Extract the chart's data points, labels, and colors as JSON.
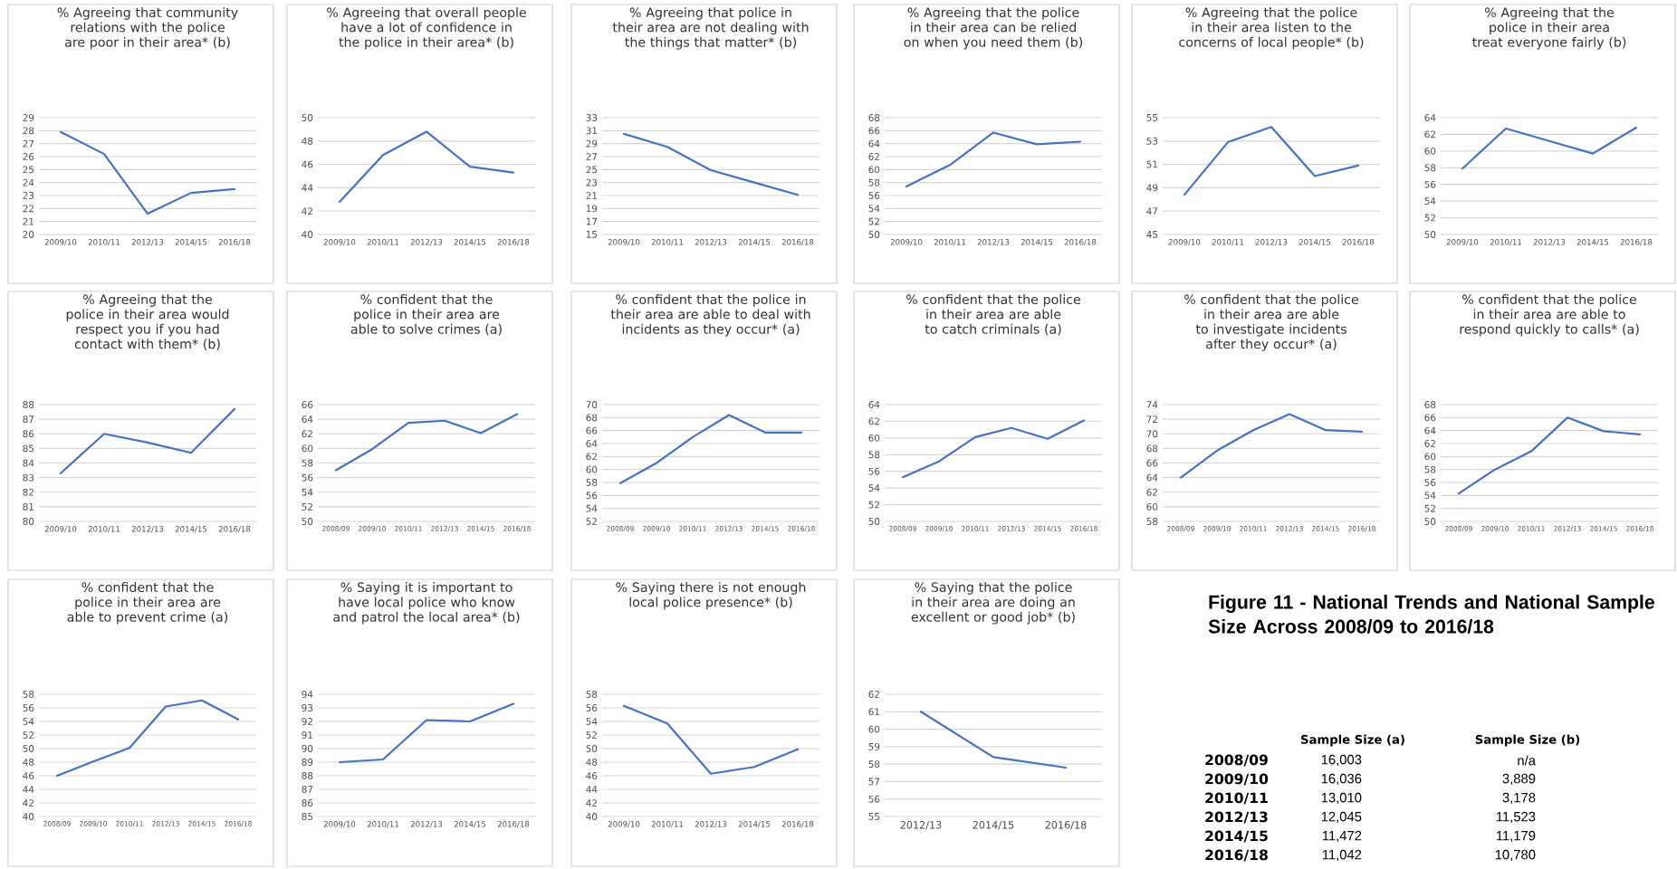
{
  "chart_data": [
    {
      "type": "line",
      "title": "% Agreeing that community relations with the police are poor in their area* (b)",
      "categories": [
        "2009/10",
        "2010/11",
        "2012/13",
        "2014/15",
        "2016/18"
      ],
      "values": [
        27.9,
        26.2,
        21.6,
        23.2,
        23.5
      ],
      "color": "#4472c4",
      "ylim": [
        20,
        29
      ],
      "yticks": [
        20,
        21,
        22,
        23,
        24,
        25,
        26,
        27,
        28,
        29
      ],
      "grid": "y"
    },
    {
      "type": "line",
      "title": "% Agreeing that overall people have a lot of confidence in the police in their area* (b)",
      "categories": [
        "2009/10",
        "2010/11",
        "2012/13",
        "2014/15",
        "2016/18"
      ],
      "values": [
        42.8,
        46.8,
        48.8,
        45.8,
        45.3
      ],
      "color": "#4472c4",
      "ylim": [
        40,
        50
      ],
      "yticks": [
        40,
        42,
        44,
        46,
        48,
        50
      ],
      "grid": "y"
    },
    {
      "type": "line",
      "title": "% Agreeing that police in their area are not dealing with the things that matter* (b)",
      "categories": [
        "2009/10",
        "2010/11",
        "2012/13",
        "2014/15",
        "2016/18"
      ],
      "values": [
        30.5,
        28.5,
        24.9,
        23.0,
        21.1
      ],
      "color": "#4472c4",
      "ylim": [
        15,
        33
      ],
      "yticks": [
        15,
        17,
        19,
        21,
        23,
        25,
        27,
        29,
        31,
        33
      ],
      "grid": "y"
    },
    {
      "type": "line",
      "title": "% Agreeing that the police in their area can be relied on when you need them (b)",
      "categories": [
        "2009/10",
        "2010/11",
        "2012/13",
        "2014/15",
        "2016/18"
      ],
      "values": [
        57.4,
        60.7,
        65.7,
        63.9,
        64.3
      ],
      "color": "#4472c4",
      "ylim": [
        50,
        68
      ],
      "yticks": [
        50,
        52,
        54,
        56,
        58,
        60,
        62,
        64,
        66,
        68
      ],
      "grid": "y"
    },
    {
      "type": "line",
      "title": "% Agreeing that the police in their area listen to the concerns of local people* (b)",
      "categories": [
        "2009/10",
        "2010/11",
        "2012/13",
        "2014/15",
        "2016/18"
      ],
      "values": [
        48.4,
        52.9,
        54.2,
        50.0,
        50.9
      ],
      "color": "#4472c4",
      "ylim": [
        45,
        55
      ],
      "yticks": [
        45,
        47,
        49,
        51,
        53,
        55
      ],
      "grid": "y"
    },
    {
      "type": "line",
      "title": "% Agreeing that the police in their area treat everyone fairly (b)",
      "categories": [
        "2009/10",
        "2010/11",
        "2012/13",
        "2014/15",
        "2016/18"
      ],
      "values": [
        57.9,
        62.7,
        61.2,
        59.7,
        62.8
      ],
      "color": "#4472c4",
      "ylim": [
        50,
        64
      ],
      "yticks": [
        50,
        52,
        54,
        56,
        58,
        60,
        62,
        64
      ],
      "grid": "y"
    },
    {
      "type": "line",
      "title": "% Agreeing that the police in their area would respect you if you had contact with them* (b)",
      "categories": [
        "2009/10",
        "2010/11",
        "2012/13",
        "2014/15",
        "2016/18"
      ],
      "values": [
        83.3,
        86.0,
        85.4,
        84.7,
        87.7
      ],
      "color": "#4472c4",
      "ylim": [
        80,
        88
      ],
      "yticks": [
        80,
        81,
        82,
        83,
        84,
        85,
        86,
        87,
        88
      ],
      "grid": "y"
    },
    {
      "type": "line",
      "title": "% confident that the police in their area are able to solve crimes (a)",
      "categories": [
        "2008/09",
        "2009/10",
        "2010/11",
        "2012/13",
        "2014/15",
        "2016/18"
      ],
      "values": [
        57.0,
        59.9,
        63.5,
        63.8,
        62.1,
        64.7
      ],
      "color": "#4472c4",
      "ylim": [
        50,
        66
      ],
      "yticks": [
        50,
        52,
        54,
        56,
        58,
        60,
        62,
        64,
        66
      ],
      "grid": "y"
    },
    {
      "type": "line",
      "title": "% confident that the police in their area are able to deal with incidents as they occur* (a)",
      "categories": [
        "2008/09",
        "2009/10",
        "2010/11",
        "2012/13",
        "2014/15",
        "2016/18"
      ],
      "values": [
        57.9,
        61.0,
        65.0,
        68.4,
        65.7,
        65.7
      ],
      "color": "#4472c4",
      "ylim": [
        52,
        70
      ],
      "yticks": [
        52,
        54,
        56,
        58,
        60,
        62,
        64,
        66,
        68,
        70
      ],
      "grid": "y"
    },
    {
      "type": "line",
      "title": "% confident that the police in their area are able to catch criminals (a)",
      "categories": [
        "2008/09",
        "2009/10",
        "2010/11",
        "2012/13",
        "2014/15",
        "2016/18"
      ],
      "values": [
        55.3,
        57.2,
        60.1,
        61.2,
        59.9,
        62.1
      ],
      "color": "#4472c4",
      "ylim": [
        50,
        64
      ],
      "yticks": [
        50,
        52,
        54,
        56,
        58,
        60,
        62,
        64
      ],
      "grid": "y"
    },
    {
      "type": "line",
      "title": "% confident that the police in their area are able to investigate incidents after they occur* (a)",
      "categories": [
        "2008/09",
        "2009/10",
        "2010/11",
        "2012/13",
        "2014/15",
        "2016/18"
      ],
      "values": [
        64.0,
        67.7,
        70.5,
        72.7,
        70.5,
        70.3
      ],
      "color": "#4472c4",
      "ylim": [
        58,
        74
      ],
      "yticks": [
        58,
        60,
        62,
        64,
        66,
        68,
        70,
        72,
        74
      ],
      "grid": "y"
    },
    {
      "type": "line",
      "title": "% confident that the police in their area are able to respond quickly to calls* (a)",
      "categories": [
        "2008/09",
        "2009/10",
        "2010/11",
        "2012/13",
        "2014/15",
        "2016/18"
      ],
      "values": [
        54.3,
        58.0,
        60.8,
        66.0,
        63.9,
        63.4
      ],
      "color": "#4472c4",
      "ylim": [
        50,
        68
      ],
      "yticks": [
        50,
        52,
        54,
        56,
        58,
        60,
        62,
        64,
        66,
        68
      ],
      "grid": "y"
    },
    {
      "type": "line",
      "title": "% confident that the police in their area are able to prevent crime (a)",
      "categories": [
        "2008/09",
        "2009/10",
        "2010/11",
        "2012/13",
        "2014/15",
        "2016/18"
      ],
      "values": [
        46.0,
        48.1,
        50.1,
        56.2,
        57.1,
        54.3
      ],
      "color": "#4472c4",
      "ylim": [
        40,
        58
      ],
      "yticks": [
        40,
        42,
        44,
        46,
        48,
        50,
        52,
        54,
        56,
        58
      ],
      "grid": "y"
    },
    {
      "type": "line",
      "title": "% Saying it is important to have local police who know and patrol the local area* (b)",
      "categories": [
        "2009/10",
        "2010/11",
        "2012/13",
        "2014/15",
        "2016/18"
      ],
      "values": [
        89.0,
        89.2,
        92.1,
        92.0,
        93.3
      ],
      "color": "#4472c4",
      "ylim": [
        85,
        94
      ],
      "yticks": [
        85,
        86,
        87,
        88,
        89,
        90,
        91,
        92,
        93,
        94
      ],
      "grid": "y"
    },
    {
      "type": "line",
      "title": "% Saying there is not enough local police presence* (b)",
      "categories": [
        "2009/10",
        "2010/11",
        "2012/13",
        "2014/15",
        "2016/18"
      ],
      "values": [
        56.3,
        53.7,
        46.3,
        47.3,
        49.9
      ],
      "color": "#4472c4",
      "ylim": [
        40,
        58
      ],
      "yticks": [
        40,
        42,
        44,
        46,
        48,
        50,
        52,
        54,
        56,
        58
      ],
      "grid": "y"
    },
    {
      "type": "line",
      "title": "% Saying that the police in their area are doing an excellent or good job* (b)",
      "categories": [
        "2012/13",
        "2014/15",
        "2016/18"
      ],
      "values": [
        61.0,
        58.4,
        57.8
      ],
      "color": "#4472c4",
      "ylim": [
        55,
        62
      ],
      "yticks": [
        55,
        56,
        57,
        58,
        59,
        60,
        61,
        62
      ],
      "grid": "y"
    },
    {
      "type": "other",
      "title": "Figure 11 - National Trends and National Sample Size Across 2008/09 to 2016/18",
      "annotations": [
        "Sample Size (a)",
        "Sample Size (b)",
        "2008/09",
        "16,003",
        "n/a",
        "2009/10",
        "16,036",
        "3,889",
        "2010/11",
        "13,010",
        "3,178",
        "2012/13",
        "12,045",
        "11,523",
        "2014/15",
        "11,472",
        "11,179",
        "2016/18",
        "11,042",
        "10,780"
      ]
    }
  ]
}
